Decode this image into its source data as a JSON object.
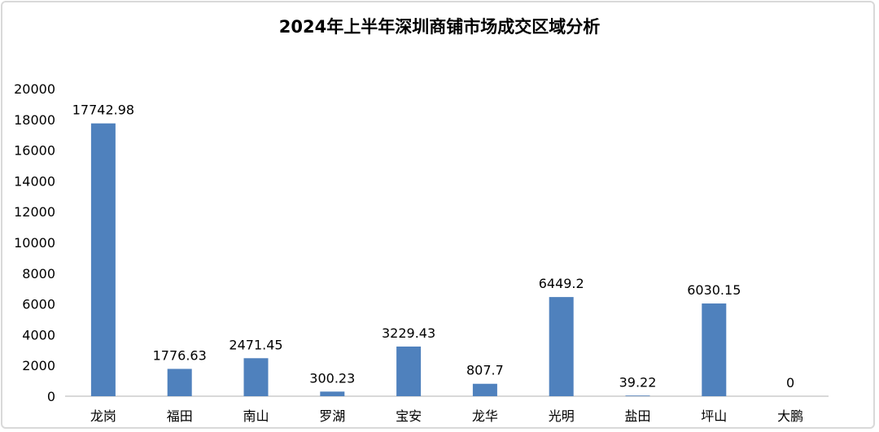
{
  "chart_data": {
    "type": "bar",
    "title": "2024年上半年深圳商铺市场成交区域分析",
    "categories": [
      "龙岗",
      "福田",
      "南山",
      "罗湖",
      "宝安",
      "龙华",
      "光明",
      "盐田",
      "坪山",
      "大鹏"
    ],
    "values": [
      17742.98,
      1776.63,
      2471.45,
      300.23,
      3229.43,
      807.7,
      6449.2,
      39.22,
      6030.15,
      0
    ],
    "data_labels": [
      "17742.98",
      "1776.63",
      "2471.45",
      "300.23",
      "3229.43",
      "807.7",
      "6449.2",
      "39.22",
      "6030.15",
      "0"
    ],
    "xlabel": "",
    "ylabel": "",
    "ylim": [
      0,
      20000
    ],
    "yticks": [
      "0",
      "2000",
      "4000",
      "6000",
      "8000",
      "10000",
      "12000",
      "14000",
      "16000",
      "18000",
      "20000"
    ],
    "grid": false,
    "bar_color": "#4f81bd"
  }
}
